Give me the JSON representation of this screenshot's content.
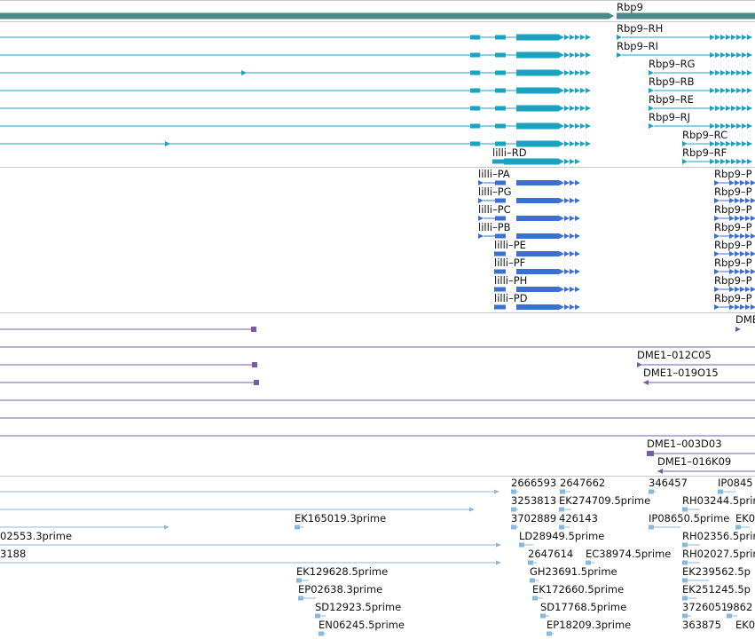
{
  "colors": {
    "gene": "#4a8a8c",
    "transcript": "#1aa3c0",
    "protein": "#3b6fd0",
    "clone": "#7a5aa6",
    "est": "#8ab8dc"
  },
  "gene": {
    "label": "Rbp9"
  },
  "transcripts": {
    "labels": [
      "Rbp9–RH",
      "Rbp9–RI",
      "Rbp9–RG",
      "Rbp9–RB",
      "Rbp9–RE",
      "Rbp9–RJ",
      "Rbp9–RC",
      "Rbp9–RF",
      "lilli–RD"
    ]
  },
  "proteins": {
    "labels": [
      "lilli–PA",
      "lilli–PG",
      "lilli–PC",
      "lilli–PB",
      "lilli–PE",
      "lilli–PF",
      "lilli–PH",
      "lilli–PD",
      "Rbp9–P",
      "Rbp9–P",
      "Rbp9–P",
      "Rbp9–P",
      "Rbp9–P",
      "Rbp9–P",
      "Rbp9–P",
      "Rbp9–P"
    ]
  },
  "clones": {
    "labels": [
      "DME",
      "DME1–012C05",
      "DME1–019O15",
      "DME1–003D03",
      "DME1–016K09"
    ]
  },
  "ests": {
    "labels": [
      "2666593",
      "2647662",
      "346457",
      "IP0845",
      "3253813",
      "EK274709.5prime",
      "RH03244.5prime",
      "EK165019.3prime",
      "3702889",
      "426143",
      "IP08650.5prime",
      "EK0",
      "02553.3prime",
      "LD28949.5prime",
      "RH02356.5prime",
      "3188",
      "2647614",
      "EC38974.5prime",
      "RH02027.5prime",
      "EK129628.5prime",
      "GH23691.5prime",
      "EK239562.5p",
      "EP02638.3prime",
      "EK172660.5prime",
      "EK251245.5p",
      "SD12923.5prime",
      "SD17768.5prime",
      "3726051",
      "9862",
      "EN06245.5prime",
      "EP18209.3prime",
      "363875",
      "EK0"
    ]
  }
}
